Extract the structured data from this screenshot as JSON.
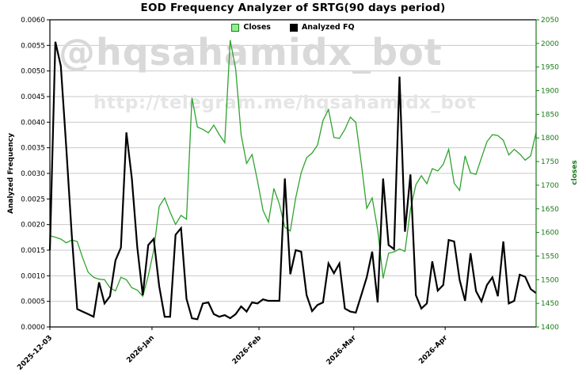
{
  "chart_data": {
    "type": "line",
    "title": "EOD Frequency Analyzer of SRTG(90 days period)",
    "grid": true,
    "legend_position": "top-center",
    "colors": {
      "background": "#ffffff",
      "grid": "#cacaca",
      "frame": "#000000",
      "right_axis": "#1a7a1a",
      "closes_line": "#2fa32f",
      "fq_line": "#000000",
      "closes_swatch_fill": "#90ee90",
      "closes_swatch_border": "#1f7a1f"
    },
    "watermark": {
      "line1": "@hqsahamidx_bot",
      "line2": "http://telegram.me/hqsahamidx_bot",
      "color1": "#d9d9d9",
      "color2": "#e5e5e5"
    },
    "left_axis": {
      "label": "Analyzed Frequency",
      "min": 0.0,
      "max": 0.006,
      "tick_labels": [
        "0.0000",
        "0.0005",
        "0.0010",
        "0.0015",
        "0.0020",
        "0.0025",
        "0.0030",
        "0.0035",
        "0.0040",
        "0.0045",
        "0.0050",
        "0.0055",
        "0.0060"
      ]
    },
    "right_axis": {
      "label": "closes",
      "min": 1400,
      "max": 2050,
      "tick_labels": [
        "1400",
        "1450",
        "1500",
        "1550",
        "1600",
        "1650",
        "1700",
        "1750",
        "1800",
        "1850",
        "1900",
        "1950",
        "2000",
        "2050"
      ]
    },
    "x_axis": {
      "ticks": [
        {
          "label": "2025-12-03",
          "pos": 0.0
        },
        {
          "label": "2026-Jan",
          "pos": 0.21
        },
        {
          "label": "2026-Feb",
          "pos": 0.43
        },
        {
          "label": "2026-Mar",
          "pos": 0.625
        },
        {
          "label": "2026-Apr",
          "pos": 0.813
        }
      ]
    },
    "series": [
      {
        "name": "Closes",
        "axis": "right",
        "color": "#2fa32f",
        "line_width": 1.3,
        "values": [
          1593,
          1590,
          1586,
          1578,
          1584,
          1581,
          1546,
          1516,
          1505,
          1501,
          1500,
          1483,
          1476,
          1505,
          1500,
          1483,
          1478,
          1465,
          1508,
          1562,
          1655,
          1673,
          1643,
          1617,
          1636,
          1628,
          1885,
          1823,
          1818,
          1811,
          1827,
          1807,
          1790,
          2007,
          1946,
          1807,
          1746,
          1765,
          1709,
          1647,
          1622,
          1693,
          1660,
          1611,
          1603,
          1673,
          1726,
          1758,
          1768,
          1785,
          1837,
          1860,
          1801,
          1799,
          1818,
          1844,
          1833,
          1747,
          1651,
          1673,
          1606,
          1503,
          1556,
          1559,
          1565,
          1560,
          1649,
          1701,
          1720,
          1703,
          1735,
          1730,
          1744,
          1776,
          1704,
          1689,
          1762,
          1726,
          1723,
          1758,
          1792,
          1807,
          1805,
          1795,
          1764,
          1776,
          1766,
          1753,
          1762,
          1812
        ]
      },
      {
        "name": "Analyzed FQ",
        "axis": "left",
        "color": "#000000",
        "line_width": 2.2,
        "values": [
          0.0015,
          0.00557,
          0.0051,
          0.0035,
          0.0018,
          0.00035,
          0.0003,
          0.00025,
          0.0002,
          0.00087,
          0.00046,
          0.0006,
          0.0013,
          0.00155,
          0.0038,
          0.0029,
          0.00155,
          0.00062,
          0.0016,
          0.00172,
          0.0008,
          0.0002,
          0.0002,
          0.0018,
          0.00193,
          0.00055,
          0.00017,
          0.00015,
          0.00046,
          0.00048,
          0.00025,
          0.0002,
          0.00023,
          0.00017,
          0.00025,
          0.0004,
          0.0003,
          0.00048,
          0.00046,
          0.00054,
          0.00051,
          0.00051,
          0.00051,
          0.0029,
          0.00103,
          0.0015,
          0.00147,
          0.00062,
          0.00031,
          0.00043,
          0.00048,
          0.00124,
          0.00105,
          0.00124,
          0.00036,
          0.0003,
          0.00028,
          0.00062,
          0.00097,
          0.00147,
          0.00048,
          0.0029,
          0.0016,
          0.00152,
          0.00489,
          0.00186,
          0.00298,
          0.00062,
          0.00036,
          0.00046,
          0.00128,
          0.00071,
          0.00082,
          0.0017,
          0.00167,
          0.00092,
          0.00051,
          0.00144,
          0.0007,
          0.0005,
          0.00082,
          0.00097,
          0.0006,
          0.00167,
          0.00046,
          0.00051,
          0.00102,
          0.00098,
          0.00074,
          0.00066
        ]
      }
    ]
  }
}
